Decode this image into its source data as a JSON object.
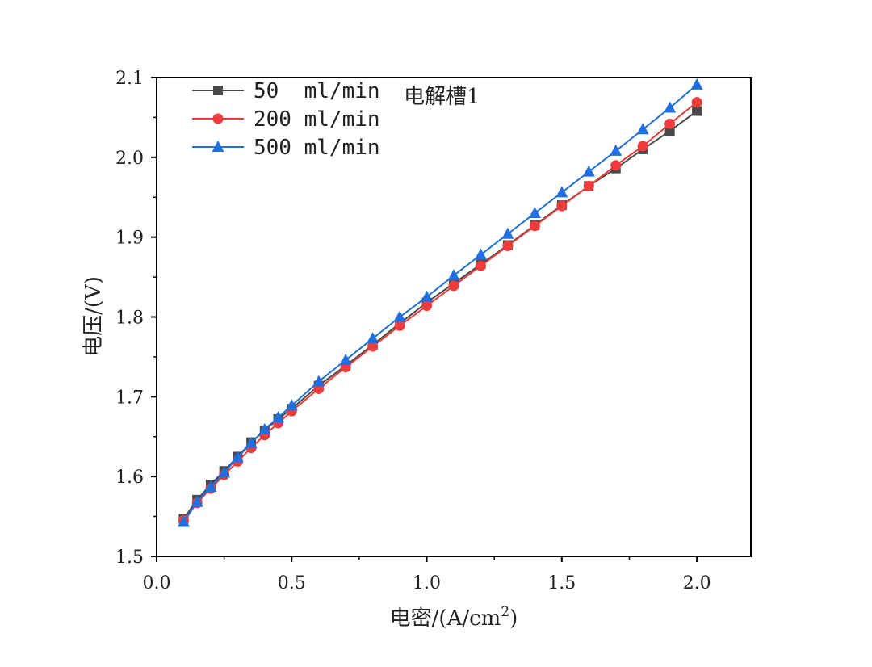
{
  "chart_data": {
    "type": "line",
    "xlabel": "电密/(A/cm",
    "xlabel_sup": "2",
    "xlabel_suffix": ")",
    "ylabel": "电压/(V)",
    "annotation": "电解槽1",
    "xlim": [
      0.0,
      2.2
    ],
    "ylim": [
      1.5,
      2.1
    ],
    "xticks": [
      0.0,
      0.5,
      1.0,
      1.5,
      2.0
    ],
    "xtick_labels": [
      "0.0",
      "0.5",
      "1.0",
      "1.5",
      "2.0"
    ],
    "yticks": [
      1.5,
      1.6,
      1.7,
      1.8,
      1.9,
      2.0,
      2.1
    ],
    "ytick_labels": [
      "1.5",
      "1.6",
      "1.7",
      "1.8",
      "1.9",
      "2.0",
      "2.1"
    ],
    "grid": false,
    "legend_position": "top-left",
    "series": [
      {
        "name": "50  ml/min",
        "color": "#4a4a4a",
        "marker": "square",
        "x": [
          0.1,
          0.15,
          0.2,
          0.25,
          0.3,
          0.35,
          0.4,
          0.45,
          0.5,
          0.6,
          0.7,
          0.8,
          0.9,
          1.0,
          1.1,
          1.2,
          1.3,
          1.4,
          1.5,
          1.6,
          1.7,
          1.8,
          1.9,
          2.0
        ],
        "y": [
          1.547,
          1.571,
          1.59,
          1.607,
          1.625,
          1.643,
          1.658,
          1.672,
          1.685,
          1.714,
          1.739,
          1.765,
          1.792,
          1.818,
          1.842,
          1.866,
          1.89,
          1.915,
          1.94,
          1.964,
          1.986,
          2.01,
          2.033,
          2.058
        ]
      },
      {
        "name": "200 ml/min",
        "color": "#ee3b3b",
        "marker": "circle",
        "x": [
          0.1,
          0.15,
          0.2,
          0.25,
          0.3,
          0.35,
          0.4,
          0.45,
          0.5,
          0.6,
          0.7,
          0.8,
          0.9,
          1.0,
          1.1,
          1.2,
          1.3,
          1.4,
          1.5,
          1.6,
          1.7,
          1.8,
          1.9,
          2.0
        ],
        "y": [
          1.545,
          1.567,
          1.585,
          1.602,
          1.619,
          1.636,
          1.652,
          1.667,
          1.682,
          1.71,
          1.737,
          1.763,
          1.789,
          1.814,
          1.839,
          1.864,
          1.889,
          1.914,
          1.939,
          1.964,
          1.99,
          2.014,
          2.042,
          2.069
        ]
      },
      {
        "name": "500 ml/min",
        "color": "#1f6fe0",
        "marker": "triangle",
        "x": [
          0.1,
          0.15,
          0.2,
          0.25,
          0.3,
          0.35,
          0.4,
          0.45,
          0.5,
          0.6,
          0.7,
          0.8,
          0.9,
          1.0,
          1.1,
          1.2,
          1.3,
          1.4,
          1.5,
          1.6,
          1.7,
          1.8,
          1.9,
          2.0
        ],
        "y": [
          1.543,
          1.568,
          1.587,
          1.605,
          1.624,
          1.642,
          1.659,
          1.674,
          1.689,
          1.719,
          1.746,
          1.773,
          1.8,
          1.825,
          1.852,
          1.878,
          1.904,
          1.93,
          1.956,
          1.982,
          2.008,
          2.035,
          2.062,
          2.091
        ]
      }
    ]
  }
}
